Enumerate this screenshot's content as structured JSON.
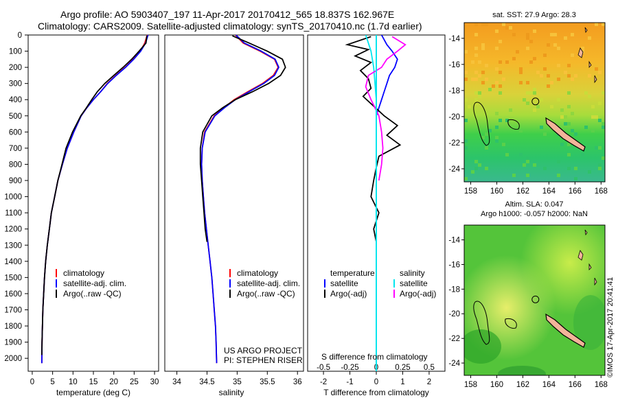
{
  "header": {
    "title_line1": "Argo profile: AO 5903407_197 11-Apr-2017 20170412_565 18.837S 162.967E",
    "title_line2": "Climatology: CARS2009. Satellite-adjusted climatology: synTS_20170410.nc (1.7d earlier)"
  },
  "colors": {
    "climatology": "#ff0000",
    "satellite_adj": "#0000ff",
    "argo": "#000000",
    "satellite_salinity": "#00e5ee",
    "argo_adj_salinity": "#ff00ff",
    "map_orange": "#f5a623",
    "map_green": "#22c55e",
    "island_fill": "#f2b49a"
  },
  "chart_data": [
    {
      "type": "line",
      "name": "temperature-profile",
      "xlabel": "temperature (deg C)",
      "ylabel": "",
      "xlim": [
        -1,
        31
      ],
      "ylim": [
        2080,
        0
      ],
      "xticks": [
        0,
        5,
        10,
        15,
        20,
        25,
        30
      ],
      "yticks": [
        0,
        100,
        200,
        300,
        400,
        500,
        600,
        700,
        800,
        900,
        1000,
        1100,
        1200,
        1300,
        1400,
        1500,
        1600,
        1700,
        1800,
        1900,
        2000
      ],
      "series": [
        {
          "name": "climatology",
          "color": "#ff0000",
          "x": [
            28.2,
            27.6,
            26.5,
            24.8,
            22.8,
            20.5,
            18.4,
            16.8,
            15.0,
            13.4,
            12.0,
            10.2,
            8.6,
            7.4,
            6.3,
            5.5,
            4.7,
            4.2,
            3.7,
            3.3,
            3.0,
            2.8,
            2.6,
            2.5,
            2.4,
            2.35
          ],
          "y": [
            0,
            50,
            100,
            150,
            200,
            250,
            300,
            350,
            400,
            450,
            500,
            600,
            700,
            800,
            900,
            1000,
            1100,
            1200,
            1300,
            1400,
            1500,
            1600,
            1700,
            1800,
            1900,
            2030
          ]
        },
        {
          "name": "satellite-adj. clim.",
          "color": "#0000ff",
          "x": [
            28.4,
            27.8,
            26.6,
            24.9,
            22.9,
            20.6,
            18.5,
            16.8,
            15.0,
            13.4,
            12.0,
            10.2,
            8.6,
            7.4,
            6.3,
            5.5,
            4.7,
            4.2,
            3.7,
            3.3,
            3.0,
            2.8,
            2.6,
            2.5,
            2.4,
            2.35
          ],
          "y": [
            0,
            50,
            100,
            150,
            200,
            250,
            300,
            350,
            400,
            450,
            500,
            600,
            700,
            800,
            900,
            1000,
            1100,
            1200,
            1300,
            1400,
            1500,
            1600,
            1700,
            1800,
            1900,
            2030
          ]
        },
        {
          "name": "Argo(..raw -QC)",
          "color": "#000000",
          "x": [
            28.1,
            27.9,
            26.2,
            24.4,
            22.3,
            20.0,
            17.8,
            16.0,
            14.6,
            13.3,
            11.9,
            9.9,
            8.3,
            7.3,
            6.3,
            5.5,
            4.7,
            4.2,
            3.7,
            3.3,
            3.0,
            2.8,
            2.6,
            2.5,
            2.4,
            2.35
          ],
          "y": [
            5,
            50,
            100,
            150,
            200,
            250,
            300,
            350,
            400,
            450,
            500,
            600,
            700,
            800,
            900,
            1000,
            1100,
            1200,
            1300,
            1400,
            1500,
            1600,
            1700,
            1800,
            1900,
            1980
          ]
        }
      ],
      "legend": {
        "position": "lower-center",
        "entries": [
          "climatology",
          "satellite-adj. clim.",
          "Argo(..raw -QC)"
        ]
      }
    },
    {
      "type": "line",
      "name": "salinity-profile",
      "xlabel": "salinity",
      "ylabel": "",
      "xlim": [
        33.8,
        36.1
      ],
      "ylim": [
        2080,
        0
      ],
      "xticks": [
        34,
        34.5,
        35,
        35.5,
        36
      ],
      "series": [
        {
          "name": "climatology",
          "color": "#ff0000",
          "x": [
            34.97,
            35.1,
            35.38,
            35.62,
            35.68,
            35.6,
            35.42,
            35.18,
            34.95,
            34.78,
            34.62,
            34.46,
            34.42,
            34.41,
            34.42,
            34.44,
            34.46,
            34.49,
            34.52,
            34.55,
            34.58,
            34.6,
            34.62,
            34.64,
            34.65,
            34.66
          ],
          "y": [
            0,
            50,
            100,
            150,
            200,
            250,
            300,
            350,
            400,
            450,
            500,
            600,
            700,
            800,
            900,
            1000,
            1100,
            1200,
            1300,
            1400,
            1500,
            1600,
            1700,
            1800,
            1900,
            2030
          ]
        },
        {
          "name": "satellite-adj. clim.",
          "color": "#0000ff",
          "x": [
            34.98,
            35.12,
            35.4,
            35.63,
            35.69,
            35.62,
            35.44,
            35.2,
            34.97,
            34.79,
            34.63,
            34.47,
            34.42,
            34.41,
            34.42,
            34.44,
            34.46,
            34.49,
            34.52,
            34.55,
            34.58,
            34.6,
            34.62,
            34.64,
            34.65,
            34.66
          ],
          "y": [
            0,
            50,
            100,
            150,
            200,
            250,
            300,
            350,
            400,
            450,
            500,
            600,
            700,
            800,
            900,
            1000,
            1100,
            1200,
            1300,
            1400,
            1500,
            1600,
            1700,
            1800,
            1900,
            2030
          ]
        },
        {
          "name": "Argo(..raw -QC)",
          "color": "#000000",
          "x": [
            34.92,
            35.2,
            35.5,
            35.75,
            35.8,
            35.72,
            35.52,
            35.26,
            34.97,
            34.76,
            34.58,
            34.43,
            34.39,
            34.39,
            34.41,
            34.43,
            34.45,
            34.47,
            34.5
          ],
          "y": [
            5,
            50,
            100,
            150,
            200,
            250,
            300,
            350,
            400,
            450,
            500,
            600,
            700,
            800,
            900,
            1000,
            1100,
            1200,
            1280
          ]
        }
      ],
      "legend": {
        "position": "lower-center",
        "entries": [
          "climatology",
          "satellite-adj. clim.",
          "Argo(..raw -QC)"
        ]
      },
      "annotations": [
        "US ARGO PROJECT",
        "PI: STEPHEN RISER"
      ]
    },
    {
      "type": "line",
      "name": "difference-profile",
      "xlabel": "T difference from climatology",
      "xlabel_top": "S difference from climatology",
      "xlim": [
        -2.6,
        2.6
      ],
      "ylim": [
        2080,
        0
      ],
      "xticks_bottom": [
        -2,
        -1,
        0,
        1,
        2
      ],
      "xticks_top": [
        -0.5,
        -0.25,
        0,
        0.25,
        0.5
      ],
      "series": [
        {
          "name": "temperature satellite",
          "color": "#0000ff",
          "x": [
            0.2,
            0.4,
            0.6,
            0.8,
            0.7,
            0.5,
            0.4,
            0.3,
            0.2,
            0.1,
            0.0,
            0.0,
            0.0,
            0.0,
            0.0,
            0.0,
            0.0,
            0.0,
            0.0,
            0.0,
            0.0
          ],
          "y": [
            0,
            60,
            100,
            150,
            200,
            250,
            300,
            350,
            400,
            450,
            500,
            600,
            700,
            800,
            900,
            1000,
            1200,
            1400,
            1600,
            1800,
            2030
          ]
        },
        {
          "name": "temperature Argo(-adj)",
          "color": "#000000",
          "x": [
            -0.2,
            -1.1,
            -0.3,
            -0.8,
            -0.2,
            -0.6,
            -0.3,
            -0.2,
            -0.5,
            -0.1,
            0.3,
            0.8,
            0.4,
            0.9,
            0.1,
            0.0,
            -0.1,
            -0.2,
            0.1,
            -0.1,
            0.0
          ],
          "y": [
            10,
            60,
            90,
            130,
            170,
            220,
            270,
            330,
            380,
            440,
            500,
            560,
            620,
            680,
            750,
            820,
            900,
            1000,
            1100,
            1200,
            1280
          ]
        },
        {
          "name": "salinity satellite",
          "color": "#00e5ee",
          "x": [
            -0.4,
            -0.3,
            -0.2,
            -0.1,
            -0.05,
            0.0,
            0.0,
            0.0,
            0.0,
            0.0,
            0.0,
            0.0
          ],
          "y": [
            0,
            50,
            100,
            200,
            300,
            400,
            600,
            800,
            1000,
            1400,
            1800,
            2030
          ]
        },
        {
          "name": "salinity Argo(-adj)",
          "color": "#ff00ff",
          "x": [
            0.6,
            1.1,
            0.8,
            0.4,
            0.2,
            -0.3,
            -0.4,
            -0.2,
            0.1,
            0.2,
            0.25,
            0.2,
            0.1
          ],
          "y": [
            10,
            60,
            100,
            150,
            200,
            250,
            320,
            400,
            500,
            600,
            700,
            800,
            900
          ]
        }
      ],
      "legend": {
        "position": "lower-center",
        "groups": [
          {
            "heading": "temperature",
            "entries": [
              "satellite",
              "Argo(-adj)"
            ]
          },
          {
            "heading": "salinity",
            "entries": [
              "satellite",
              "Argo(-adj)"
            ]
          }
        ]
      }
    },
    {
      "type": "heatmap",
      "name": "sst-map",
      "title": "sat. SST: 27.9 Argo: 28.3",
      "xlim": [
        157.5,
        168.3
      ],
      "ylim": [
        -25,
        -12.8
      ],
      "xticks": [
        158,
        160,
        162,
        164,
        166,
        168
      ],
      "yticks": [
        -14,
        -16,
        -18,
        -20,
        -22,
        -24
      ],
      "argo_position": {
        "lon": 162.967,
        "lat": -18.837
      }
    },
    {
      "type": "heatmap",
      "name": "sla-map",
      "title_line1": "Altim. SLA: 0.047",
      "title_line2": "Argo h1000: -0.057 h2000: NaN",
      "xlim": [
        157.5,
        168.3
      ],
      "ylim": [
        -25,
        -12.8
      ],
      "xticks": [
        158,
        160,
        162,
        164,
        166,
        168
      ],
      "yticks": [
        -14,
        -16,
        -18,
        -20,
        -22,
        -24
      ],
      "argo_position": {
        "lon": 162.967,
        "lat": -18.837
      }
    }
  ],
  "credit": "©IMOS 17-Apr-2017 20:41:41"
}
